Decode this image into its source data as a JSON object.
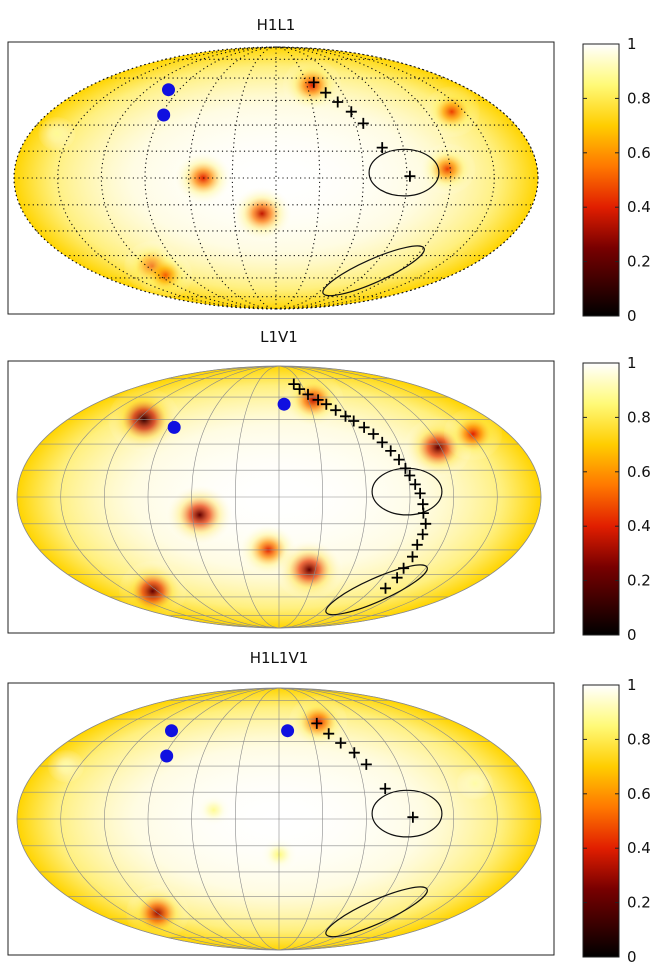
{
  "chart_data": [
    {
      "type": "heatmap",
      "projection": "mollweide",
      "title": "H1L1",
      "grid_style": "dotted",
      "colorbar": {
        "min": 0,
        "max": 1,
        "ticks": [
          "0",
          "0.2",
          "0.4",
          "0.6",
          "0.8",
          "1"
        ],
        "colormap": "hot"
      },
      "minima": [
        {
          "lon": -160,
          "lat": 25,
          "depth": 0.12
        },
        {
          "lon": -50,
          "lat": 0,
          "depth": 0.6
        },
        {
          "lon": -10,
          "lat": -20,
          "depth": 0.65
        },
        {
          "lon": 35,
          "lat": 55,
          "depth": 0.6
        },
        {
          "lon": 118,
          "lat": 5,
          "depth": 0.55
        },
        {
          "lon": 140,
          "lat": 38,
          "depth": 0.55
        },
        {
          "lon": -115,
          "lat": -52,
          "depth": 0.55
        },
        {
          "lon": -113,
          "lat": -58,
          "depth": 0.5
        }
      ],
      "source_markers": [
        {
          "lon": -100,
          "lat": 52
        },
        {
          "lon": -88,
          "lat": 36
        }
      ],
      "track_markers": [
        {
          "lon": 38,
          "lat": 57
        },
        {
          "lon": 45,
          "lat": 50
        },
        {
          "lon": 52,
          "lat": 44
        },
        {
          "lon": 60,
          "lat": 38
        },
        {
          "lon": 66,
          "lat": 31
        },
        {
          "lon": 75,
          "lat": 17
        },
        {
          "lon": 92,
          "lat": 1
        }
      ],
      "contours": [
        {
          "lon": 88,
          "lat": 3,
          "rx_deg": 24,
          "ry_deg": 16,
          "rotate_deg": 0
        },
        {
          "lon": 95,
          "lat": -55,
          "rx_deg": 38,
          "ry_deg": 8,
          "rotate_deg": -24
        }
      ]
    },
    {
      "type": "heatmap",
      "projection": "mollweide",
      "title": "L1V1",
      "grid_style": "solid",
      "colorbar": {
        "min": 0,
        "max": 1,
        "ticks": [
          "0",
          "0.2",
          "0.4",
          "0.6",
          "0.8",
          "1"
        ],
        "colormap": "hot"
      },
      "minima": [
        {
          "lon": -115,
          "lat": 45,
          "depth": 0.9
        },
        {
          "lon": -55,
          "lat": -10,
          "depth": 0.8
        },
        {
          "lon": -8,
          "lat": -30,
          "depth": 0.6
        },
        {
          "lon": 25,
          "lat": -42,
          "depth": 0.8
        },
        {
          "lon": 35,
          "lat": 58,
          "depth": 0.65
        },
        {
          "lon": 118,
          "lat": 28,
          "depth": 0.8
        },
        {
          "lon": 152,
          "lat": 36,
          "depth": 0.6
        },
        {
          "lon": -125,
          "lat": -56,
          "depth": 0.8
        }
      ],
      "source_markers": [
        {
          "lon": -85,
          "lat": 40
        },
        {
          "lon": 5,
          "lat": 55
        }
      ],
      "track_markers": [
        {
          "lon": 20,
          "lat": 70
        },
        {
          "lon": 25,
          "lat": 66
        },
        {
          "lon": 32,
          "lat": 62
        },
        {
          "lon": 40,
          "lat": 58
        },
        {
          "lon": 46,
          "lat": 55
        },
        {
          "lon": 52,
          "lat": 51
        },
        {
          "lon": 58,
          "lat": 47
        },
        {
          "lon": 63,
          "lat": 44
        },
        {
          "lon": 69,
          "lat": 40
        },
        {
          "lon": 74,
          "lat": 36
        },
        {
          "lon": 78,
          "lat": 31
        },
        {
          "lon": 82,
          "lat": 26
        },
        {
          "lon": 86,
          "lat": 21
        },
        {
          "lon": 89,
          "lat": 16
        },
        {
          "lon": 91,
          "lat": 12
        },
        {
          "lon": 94,
          "lat": 7
        },
        {
          "lon": 97,
          "lat": 2
        },
        {
          "lon": 99,
          "lat": -4
        },
        {
          "lon": 100,
          "lat": -9
        },
        {
          "lon": 103,
          "lat": -15
        },
        {
          "lon": 103,
          "lat": -21
        },
        {
          "lon": 102,
          "lat": -27
        },
        {
          "lon": 103,
          "lat": -34
        },
        {
          "lon": 102,
          "lat": -41
        },
        {
          "lon": 103,
          "lat": -47
        },
        {
          "lon": 102,
          "lat": -54
        }
      ],
      "contours": [
        {
          "lon": 88,
          "lat": 3,
          "rx_deg": 24,
          "ry_deg": 16,
          "rotate_deg": 0
        },
        {
          "lon": 95,
          "lat": -55,
          "rx_deg": 38,
          "ry_deg": 8,
          "rotate_deg": -24
        }
      ]
    },
    {
      "type": "heatmap",
      "projection": "mollweide",
      "title": "H1L1V1",
      "grid_style": "solid",
      "colorbar": {
        "min": 0,
        "max": 1,
        "ticks": [
          "0",
          "0.2",
          "0.4",
          "0.6",
          "0.8",
          "1"
        ],
        "colormap": "hot"
      },
      "minima": [
        {
          "lon": 40,
          "lat": 58,
          "depth": 0.6
        },
        {
          "lon": -120,
          "lat": -56,
          "depth": 0.7
        },
        {
          "lon": -160,
          "lat": 30,
          "depth": 0.1
        },
        {
          "lon": -45,
          "lat": 5,
          "depth": 0.12
        },
        {
          "lon": 0,
          "lat": -20,
          "depth": 0.15
        },
        {
          "lon": 140,
          "lat": 20,
          "depth": 0.1
        }
      ],
      "source_markers": [
        {
          "lon": -100,
          "lat": 52
        },
        {
          "lon": -88,
          "lat": 36
        },
        {
          "lon": 8,
          "lat": 52
        }
      ],
      "track_markers": [
        {
          "lon": 38,
          "lat": 57
        },
        {
          "lon": 45,
          "lat": 50
        },
        {
          "lon": 52,
          "lat": 44
        },
        {
          "lon": 60,
          "lat": 38
        },
        {
          "lon": 66,
          "lat": 31
        },
        {
          "lon": 75,
          "lat": 17
        },
        {
          "lon": 92,
          "lat": 1
        }
      ],
      "contours": [
        {
          "lon": 88,
          "lat": 3,
          "rx_deg": 24,
          "ry_deg": 16,
          "rotate_deg": 0
        },
        {
          "lon": 95,
          "lat": -55,
          "rx_deg": 38,
          "ry_deg": 8,
          "rotate_deg": -24
        }
      ]
    }
  ]
}
